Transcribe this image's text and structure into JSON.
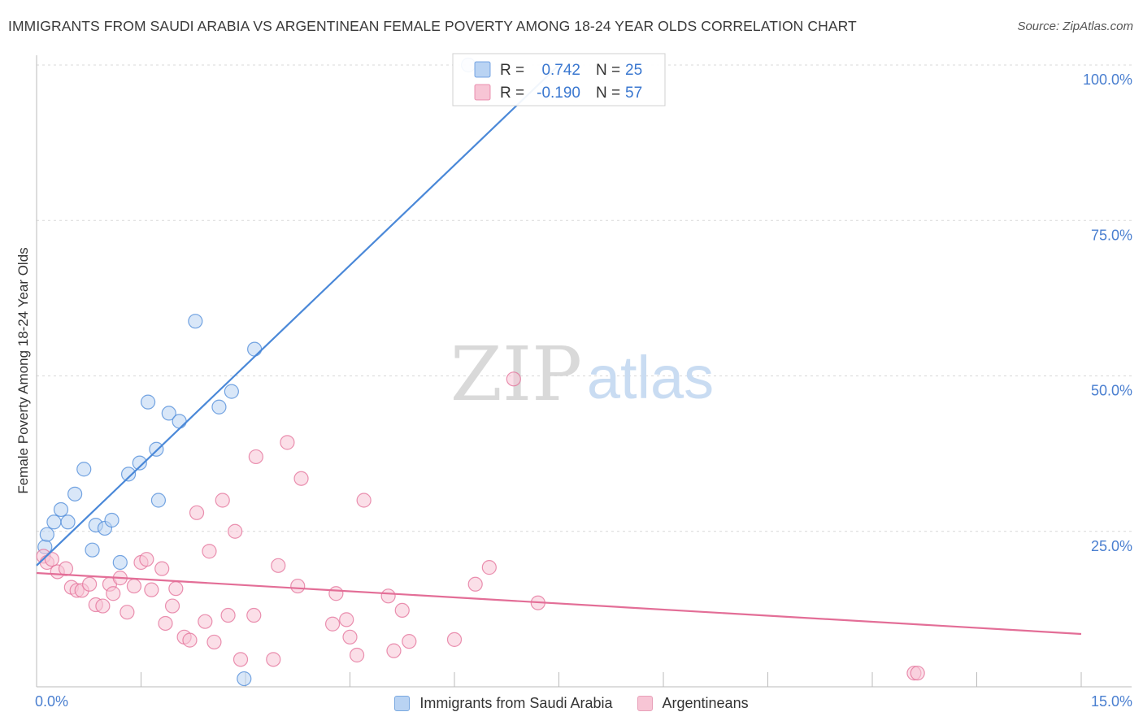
{
  "header": {
    "title": "IMMIGRANTS FROM SAUDI ARABIA VS ARGENTINEAN FEMALE POVERTY AMONG 18-24 YEAR OLDS CORRELATION CHART",
    "source": "Source: ZipAtlas.com"
  },
  "watermark": {
    "zip": "ZIP",
    "atlas": "atlas"
  },
  "chart_data": {
    "type": "scatter",
    "title": "IMMIGRANTS FROM SAUDI ARABIA VS ARGENTINEAN FEMALE POVERTY AMONG 18-24 YEAR OLDS CORRELATION CHART",
    "xlabel": "",
    "ylabel": "Female Poverty Among 18-24 Year Olds",
    "xlim": [
      0,
      15
    ],
    "ylim": [
      0,
      100
    ],
    "x_tick_labels": [
      "0.0%",
      "15.0%"
    ],
    "y_ticks": [
      25,
      50,
      75,
      100
    ],
    "y_tick_labels": [
      "25.0%",
      "50.0%",
      "75.0%",
      "100.0%"
    ],
    "grid": true,
    "stats_legend": [
      {
        "r_label": "R =",
        "r_value": "0.742",
        "n_label": "N =",
        "n_value": "25"
      },
      {
        "r_label": "R =",
        "r_value": "-0.190",
        "n_label": "N =",
        "n_value": "57"
      }
    ],
    "series": [
      {
        "name": "Immigrants from Saudi Arabia",
        "color": "#4a88d8",
        "fill": "#b9d3f3",
        "trend": {
          "x": [
            0.0,
            7.5
          ],
          "y": [
            19.5,
            100
          ]
        },
        "points": [
          [
            0.12,
            22.5
          ],
          [
            0.15,
            24.5
          ],
          [
            0.25,
            26.5
          ],
          [
            0.35,
            28.5
          ],
          [
            0.45,
            26.5
          ],
          [
            0.55,
            31
          ],
          [
            0.68,
            35
          ],
          [
            0.8,
            22
          ],
          [
            0.85,
            26
          ],
          [
            0.98,
            25.5
          ],
          [
            1.08,
            26.8
          ],
          [
            1.2,
            20
          ],
          [
            1.32,
            34.2
          ],
          [
            1.48,
            36
          ],
          [
            1.6,
            45.8
          ],
          [
            1.72,
            38.2
          ],
          [
            1.75,
            30
          ],
          [
            1.9,
            44
          ],
          [
            2.05,
            42.7
          ],
          [
            2.28,
            58.8
          ],
          [
            2.62,
            45
          ],
          [
            2.8,
            47.5
          ],
          [
            3.13,
            54.3
          ],
          [
            2.98,
            1.3
          ],
          [
            6.2,
            100
          ]
        ]
      },
      {
        "name": "Argentineans",
        "color": "#e36e97",
        "fill": "#f7c5d5",
        "trend": {
          "x": [
            0.0,
            15.0
          ],
          "y": [
            18.3,
            8.5
          ]
        },
        "points": [
          [
            0.1,
            21
          ],
          [
            0.15,
            20
          ],
          [
            0.22,
            20.5
          ],
          [
            0.3,
            18.5
          ],
          [
            0.42,
            19
          ],
          [
            0.5,
            16
          ],
          [
            0.58,
            15.5
          ],
          [
            0.65,
            15.5
          ],
          [
            0.76,
            16.5
          ],
          [
            0.85,
            13.2
          ],
          [
            0.95,
            13
          ],
          [
            1.05,
            16.5
          ],
          [
            1.1,
            15
          ],
          [
            1.2,
            17.5
          ],
          [
            1.3,
            12
          ],
          [
            1.4,
            16.2
          ],
          [
            1.5,
            20
          ],
          [
            1.58,
            20.5
          ],
          [
            1.65,
            15.6
          ],
          [
            1.8,
            19
          ],
          [
            1.85,
            10.2
          ],
          [
            1.95,
            13
          ],
          [
            2.0,
            15.8
          ],
          [
            2.12,
            8
          ],
          [
            2.2,
            7.5
          ],
          [
            2.3,
            28
          ],
          [
            2.42,
            10.5
          ],
          [
            2.48,
            21.8
          ],
          [
            2.55,
            7.2
          ],
          [
            2.67,
            30
          ],
          [
            2.75,
            11.5
          ],
          [
            2.85,
            25
          ],
          [
            2.93,
            4.4
          ],
          [
            3.12,
            11.5
          ],
          [
            3.15,
            37
          ],
          [
            3.4,
            4.4
          ],
          [
            3.47,
            19.5
          ],
          [
            3.6,
            39.3
          ],
          [
            3.75,
            16.2
          ],
          [
            3.8,
            33.5
          ],
          [
            4.25,
            10.1
          ],
          [
            4.3,
            15
          ],
          [
            4.45,
            10.8
          ],
          [
            4.5,
            8
          ],
          [
            4.6,
            5.1
          ],
          [
            4.7,
            30
          ],
          [
            5.05,
            14.6
          ],
          [
            5.13,
            5.8
          ],
          [
            5.25,
            12.3
          ],
          [
            5.35,
            7.3
          ],
          [
            6.0,
            7.6
          ],
          [
            6.3,
            16.5
          ],
          [
            6.5,
            19.2
          ],
          [
            6.85,
            49.5
          ],
          [
            7.2,
            13.5
          ],
          [
            12.6,
            2.2
          ],
          [
            12.65,
            2.2
          ]
        ]
      }
    ]
  }
}
